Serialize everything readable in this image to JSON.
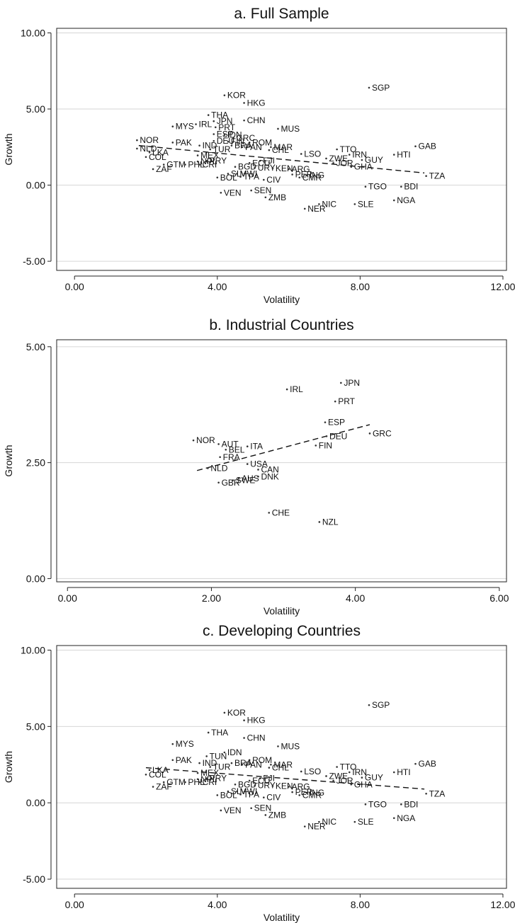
{
  "chart_data": [
    {
      "type": "scatter",
      "title": "a. Full Sample",
      "xlabel": "Volatility",
      "ylabel": "Growth",
      "xlim": [
        -0.5,
        12.1
      ],
      "ylim": [
        -5.6,
        10.3
      ],
      "xticks": [
        0,
        4,
        8,
        12
      ],
      "xtick_labels": [
        "0.00",
        "4.00",
        "8.00",
        "12.00"
      ],
      "yticks": [
        -5,
        0,
        5,
        10
      ],
      "ytick_labels": [
        "-5.00",
        "0.00",
        "5.00",
        "10.00"
      ],
      "grid": "horizontal",
      "fit_line": {
        "x": [
          1.8,
          9.8
        ],
        "y": [
          2.6,
          0.8
        ]
      },
      "points": [
        {
          "label": "SGP",
          "x": 8.25,
          "y": 6.4
        },
        {
          "label": "KOR",
          "x": 4.2,
          "y": 5.9
        },
        {
          "label": "HKG",
          "x": 4.75,
          "y": 5.4
        },
        {
          "label": "THA",
          "x": 3.75,
          "y": 4.6
        },
        {
          "label": "JPN",
          "x": 3.9,
          "y": 4.2
        },
        {
          "label": "CHN",
          "x": 4.75,
          "y": 4.25
        },
        {
          "label": "IRL",
          "x": 3.4,
          "y": 4.0
        },
        {
          "label": "MYS",
          "x": 2.75,
          "y": 3.85
        },
        {
          "label": "PRT",
          "x": 3.95,
          "y": 3.8
        },
        {
          "label": "MUS",
          "x": 5.7,
          "y": 3.7
        },
        {
          "label": "ESP",
          "x": 3.9,
          "y": 3.35
        },
        {
          "label": "IDN",
          "x": 4.2,
          "y": 3.3
        },
        {
          "label": "GRC",
          "x": 4.45,
          "y": 3.1
        },
        {
          "label": "NOR",
          "x": 1.75,
          "y": 2.95
        },
        {
          "label": "PAK",
          "x": 2.75,
          "y": 2.8
        },
        {
          "label": "DEU",
          "x": 3.9,
          "y": 2.9
        },
        {
          "label": "FIN",
          "x": 4.3,
          "y": 2.85
        },
        {
          "label": "ROM",
          "x": 4.9,
          "y": 2.8
        },
        {
          "label": "IND",
          "x": 3.5,
          "y": 2.6
        },
        {
          "label": "BRA",
          "x": 4.4,
          "y": 2.6
        },
        {
          "label": "PAN",
          "x": 4.7,
          "y": 2.5
        },
        {
          "label": "MAR",
          "x": 5.5,
          "y": 2.5
        },
        {
          "label": "GAB",
          "x": 9.55,
          "y": 2.55
        },
        {
          "label": "NLD",
          "x": 1.75,
          "y": 2.4
        },
        {
          "label": "TUR",
          "x": 3.8,
          "y": 2.35
        },
        {
          "label": "TTO",
          "x": 7.35,
          "y": 2.35
        },
        {
          "label": "CHL",
          "x": 5.45,
          "y": 2.3
        },
        {
          "label": "LKA",
          "x": 2.1,
          "y": 2.15
        },
        {
          "label": "LSO",
          "x": 6.35,
          "y": 2.05
        },
        {
          "label": "IRN",
          "x": 7.7,
          "y": 2.0
        },
        {
          "label": "HTI",
          "x": 8.95,
          "y": 2.0
        },
        {
          "label": "COL",
          "x": 2.0,
          "y": 1.85
        },
        {
          "label": "MEX",
          "x": 3.45,
          "y": 1.95
        },
        {
          "label": "ZWE",
          "x": 7.05,
          "y": 1.75
        },
        {
          "label": "GUY",
          "x": 8.05,
          "y": 1.65
        },
        {
          "label": "NPL",
          "x": 3.45,
          "y": 1.55
        },
        {
          "label": "PRY",
          "x": 3.7,
          "y": 1.6
        },
        {
          "label": "FJI",
          "x": 5.2,
          "y": 1.6
        },
        {
          "label": "ECU",
          "x": 4.9,
          "y": 1.45
        },
        {
          "label": "GTM",
          "x": 2.5,
          "y": 1.35
        },
        {
          "label": "PHL",
          "x": 3.1,
          "y": 1.35
        },
        {
          "label": "CRI",
          "x": 3.5,
          "y": 1.35
        },
        {
          "label": "JOR",
          "x": 7.25,
          "y": 1.45
        },
        {
          "label": "ZAF",
          "x": 2.2,
          "y": 1.05
        },
        {
          "label": "BGD",
          "x": 4.5,
          "y": 1.2
        },
        {
          "label": "URY",
          "x": 5.05,
          "y": 1.15
        },
        {
          "label": "KEN",
          "x": 5.55,
          "y": 1.1
        },
        {
          "label": "ARG",
          "x": 6.0,
          "y": 1.05
        },
        {
          "label": "GHA",
          "x": 7.75,
          "y": 1.2
        },
        {
          "label": "SLV",
          "x": 4.3,
          "y": 0.75
        },
        {
          "label": "MWI",
          "x": 4.55,
          "y": 0.75
        },
        {
          "label": "PER",
          "x": 6.1,
          "y": 0.7
        },
        {
          "label": "ING",
          "x": 6.5,
          "y": 0.65
        },
        {
          "label": "TZA",
          "x": 9.85,
          "y": 0.6
        },
        {
          "label": "BOL",
          "x": 4.0,
          "y": 0.5
        },
        {
          "label": "TPA",
          "x": 4.65,
          "y": 0.55
        },
        {
          "label": "CIV",
          "x": 5.3,
          "y": 0.35
        },
        {
          "label": "CMR",
          "x": 6.3,
          "y": 0.5
        },
        {
          "label": "TGO",
          "x": 8.15,
          "y": -0.1
        },
        {
          "label": "BDI",
          "x": 9.15,
          "y": -0.1
        },
        {
          "label": "VEN",
          "x": 4.1,
          "y": -0.5
        },
        {
          "label": "SEN",
          "x": 4.95,
          "y": -0.35
        },
        {
          "label": "ZMB",
          "x": 5.35,
          "y": -0.8
        },
        {
          "label": "NGA",
          "x": 8.95,
          "y": -1.0
        },
        {
          "label": "NIC",
          "x": 6.85,
          "y": -1.25
        },
        {
          "label": "SLE",
          "x": 7.85,
          "y": -1.25
        },
        {
          "label": "NER",
          "x": 6.45,
          "y": -1.55
        }
      ]
    },
    {
      "type": "scatter",
      "title": "b. Industrial Countries",
      "xlabel": "Volatility",
      "ylabel": "Growth",
      "xlim": [
        -0.15,
        6.1
      ],
      "ylim": [
        -0.07,
        5.15
      ],
      "xticks": [
        0,
        2,
        4,
        6
      ],
      "xtick_labels": [
        "0.00",
        "2.00",
        "4.00",
        "6.00"
      ],
      "yticks": [
        0,
        2.5,
        5
      ],
      "ytick_labels": [
        "0.00",
        "2.50",
        "5.00"
      ],
      "grid": "horizontal",
      "fit_line": {
        "x": [
          1.8,
          4.2
        ],
        "y": [
          2.33,
          3.32
        ]
      },
      "points": [
        {
          "label": "JPN",
          "x": 3.8,
          "y": 4.22
        },
        {
          "label": "IRL",
          "x": 3.05,
          "y": 4.08
        },
        {
          "label": "PRT",
          "x": 3.72,
          "y": 3.82
        },
        {
          "label": "ESP",
          "x": 3.58,
          "y": 3.37
        },
        {
          "label": "GRC",
          "x": 4.2,
          "y": 3.13
        },
        {
          "label": "DEU",
          "x": 3.6,
          "y": 3.07
        },
        {
          "label": "FIN",
          "x": 3.45,
          "y": 2.87
        },
        {
          "label": "NOR",
          "x": 1.75,
          "y": 2.98
        },
        {
          "label": "AUT",
          "x": 2.1,
          "y": 2.9
        },
        {
          "label": "ITA",
          "x": 2.5,
          "y": 2.85
        },
        {
          "label": "BEL",
          "x": 2.2,
          "y": 2.78
        },
        {
          "label": "FRA",
          "x": 2.12,
          "y": 2.62
        },
        {
          "label": "USA",
          "x": 2.5,
          "y": 2.47
        },
        {
          "label": "NLD",
          "x": 1.95,
          "y": 2.38
        },
        {
          "label": "CAN",
          "x": 2.65,
          "y": 2.35
        },
        {
          "label": "DNK",
          "x": 2.65,
          "y": 2.2
        },
        {
          "label": "AUS",
          "x": 2.38,
          "y": 2.16
        },
        {
          "label": "SWE",
          "x": 2.3,
          "y": 2.12
        },
        {
          "label": "GBR",
          "x": 2.1,
          "y": 2.07
        },
        {
          "label": "CHE",
          "x": 2.8,
          "y": 1.42
        },
        {
          "label": "NZL",
          "x": 3.5,
          "y": 1.22
        }
      ]
    },
    {
      "type": "scatter",
      "title": "c. Developing Countries",
      "xlabel": "Volatility",
      "ylabel": "Growth",
      "xlim": [
        -0.5,
        12.1
      ],
      "ylim": [
        -5.6,
        10.3
      ],
      "xticks": [
        0,
        4,
        8,
        12
      ],
      "xtick_labels": [
        "0.00",
        "4.00",
        "8.00",
        "12.00"
      ],
      "yticks": [
        -5,
        0,
        5,
        10
      ],
      "ytick_labels": [
        "-5.00",
        "0.00",
        "5.00",
        "10.00"
      ],
      "grid": "horizontal",
      "fit_line": {
        "x": [
          2.0,
          9.8
        ],
        "y": [
          2.3,
          0.9
        ]
      },
      "points": [
        {
          "label": "SGP",
          "x": 8.25,
          "y": 6.4
        },
        {
          "label": "KOR",
          "x": 4.2,
          "y": 5.9
        },
        {
          "label": "HKG",
          "x": 4.75,
          "y": 5.4
        },
        {
          "label": "THA",
          "x": 3.75,
          "y": 4.6
        },
        {
          "label": "CHN",
          "x": 4.75,
          "y": 4.25
        },
        {
          "label": "MYS",
          "x": 2.75,
          "y": 3.85
        },
        {
          "label": "MUS",
          "x": 5.7,
          "y": 3.7
        },
        {
          "label": "IDN",
          "x": 4.2,
          "y": 3.3
        },
        {
          "label": "TUN",
          "x": 3.7,
          "y": 3.05
        },
        {
          "label": "PAK",
          "x": 2.75,
          "y": 2.8
        },
        {
          "label": "ROM",
          "x": 4.9,
          "y": 2.8
        },
        {
          "label": "IND",
          "x": 3.5,
          "y": 2.6
        },
        {
          "label": "BRA",
          "x": 4.4,
          "y": 2.6
        },
        {
          "label": "PAN",
          "x": 4.7,
          "y": 2.5
        },
        {
          "label": "MAR",
          "x": 5.5,
          "y": 2.5
        },
        {
          "label": "GAB",
          "x": 9.55,
          "y": 2.55
        },
        {
          "label": "TUR",
          "x": 3.8,
          "y": 2.35
        },
        {
          "label": "TTO",
          "x": 7.35,
          "y": 2.35
        },
        {
          "label": "CHL",
          "x": 5.45,
          "y": 2.3
        },
        {
          "label": "LKA",
          "x": 2.1,
          "y": 2.15
        },
        {
          "label": "LSO",
          "x": 6.35,
          "y": 2.05
        },
        {
          "label": "IRN",
          "x": 7.7,
          "y": 2.0
        },
        {
          "label": "HTI",
          "x": 8.95,
          "y": 2.0
        },
        {
          "label": "COL",
          "x": 2.0,
          "y": 1.85
        },
        {
          "label": "MEX",
          "x": 3.45,
          "y": 1.95
        },
        {
          "label": "ZWE",
          "x": 7.05,
          "y": 1.75
        },
        {
          "label": "GUY",
          "x": 8.05,
          "y": 1.65
        },
        {
          "label": "NPL",
          "x": 3.45,
          "y": 1.55
        },
        {
          "label": "PRY",
          "x": 3.7,
          "y": 1.6
        },
        {
          "label": "FJI",
          "x": 5.2,
          "y": 1.6
        },
        {
          "label": "ECU",
          "x": 4.9,
          "y": 1.45
        },
        {
          "label": "GTM",
          "x": 2.5,
          "y": 1.35
        },
        {
          "label": "PHL",
          "x": 3.1,
          "y": 1.35
        },
        {
          "label": "CRI",
          "x": 3.5,
          "y": 1.35
        },
        {
          "label": "JOR",
          "x": 7.25,
          "y": 1.45
        },
        {
          "label": "ZAF",
          "x": 2.2,
          "y": 1.05
        },
        {
          "label": "BGD",
          "x": 4.5,
          "y": 1.2
        },
        {
          "label": "URY",
          "x": 5.05,
          "y": 1.15
        },
        {
          "label": "KEN",
          "x": 5.55,
          "y": 1.1
        },
        {
          "label": "ARG",
          "x": 6.0,
          "y": 1.05
        },
        {
          "label": "GHA",
          "x": 7.75,
          "y": 1.2
        },
        {
          "label": "SLV",
          "x": 4.3,
          "y": 0.75
        },
        {
          "label": "MWI",
          "x": 4.55,
          "y": 0.75
        },
        {
          "label": "PER",
          "x": 6.1,
          "y": 0.7
        },
        {
          "label": "ING",
          "x": 6.5,
          "y": 0.65
        },
        {
          "label": "TZA",
          "x": 9.85,
          "y": 0.6
        },
        {
          "label": "BOL",
          "x": 4.0,
          "y": 0.5
        },
        {
          "label": "TPA",
          "x": 4.65,
          "y": 0.55
        },
        {
          "label": "CIV",
          "x": 5.3,
          "y": 0.35
        },
        {
          "label": "CMR",
          "x": 6.3,
          "y": 0.5
        },
        {
          "label": "TGO",
          "x": 8.15,
          "y": -0.1
        },
        {
          "label": "BDI",
          "x": 9.15,
          "y": -0.1
        },
        {
          "label": "VEN",
          "x": 4.1,
          "y": -0.5
        },
        {
          "label": "SEN",
          "x": 4.95,
          "y": -0.35
        },
        {
          "label": "ZMB",
          "x": 5.35,
          "y": -0.8
        },
        {
          "label": "NGA",
          "x": 8.95,
          "y": -1.0
        },
        {
          "label": "NIC",
          "x": 6.85,
          "y": -1.25
        },
        {
          "label": "SLE",
          "x": 7.85,
          "y": -1.25
        },
        {
          "label": "NER",
          "x": 6.45,
          "y": -1.55
        }
      ]
    }
  ]
}
